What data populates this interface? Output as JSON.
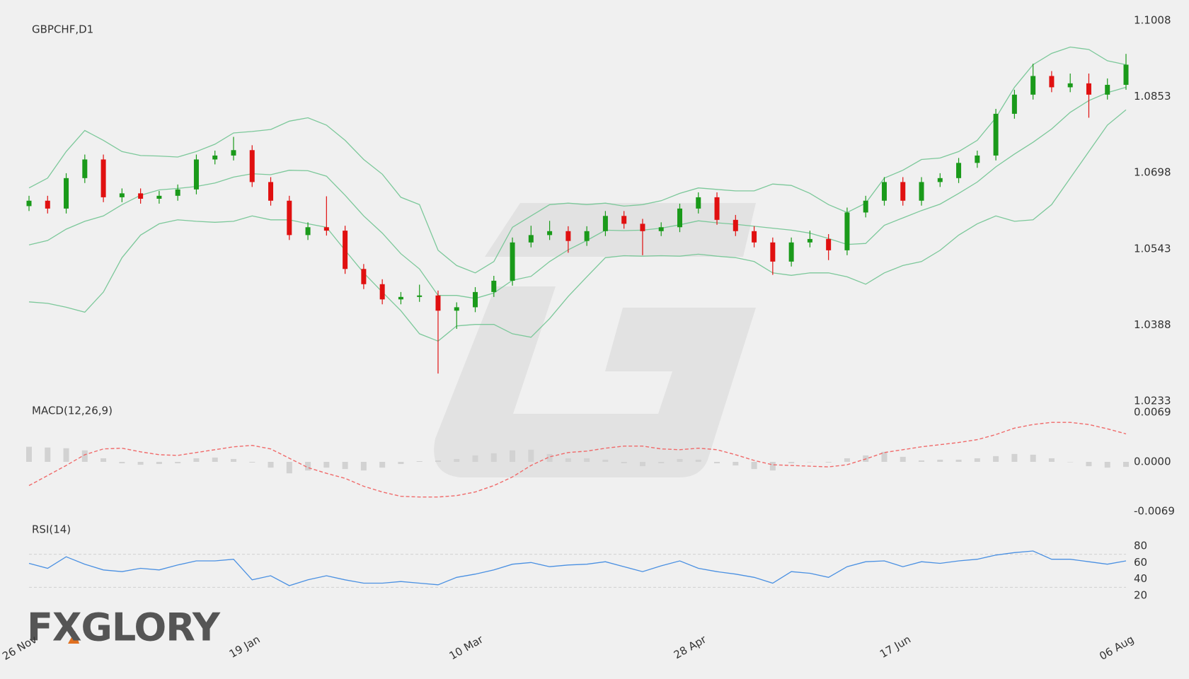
{
  "logo": "FXGLORY",
  "chart_data": [
    {
      "type": "candlestick",
      "title": "GBPCHF,D1",
      "categories": [
        "26 Nov",
        null,
        null,
        null,
        null,
        null,
        null,
        null,
        null,
        null,
        null,
        null,
        "19 Jan",
        null,
        null,
        null,
        null,
        null,
        null,
        null,
        null,
        null,
        null,
        null,
        "10 Mar",
        null,
        null,
        null,
        null,
        null,
        null,
        null,
        null,
        null,
        null,
        null,
        "28 Apr",
        null,
        null,
        null,
        null,
        null,
        null,
        null,
        null,
        null,
        null,
        "17 Jun",
        null,
        null,
        null,
        null,
        null,
        null,
        null,
        null,
        null,
        null,
        null,
        "06 Aug"
      ],
      "open": [
        1.063,
        1.0641,
        1.0625,
        1.0687,
        1.0725,
        1.0648,
        1.0656,
        1.0645,
        1.0651,
        1.0664,
        1.0725,
        1.0733,
        1.0744,
        1.0679,
        1.0641,
        1.0571,
        1.0587,
        1.058,
        1.0502,
        1.0471,
        1.044,
        1.0445,
        1.0448,
        1.0417,
        1.0424,
        1.0455,
        1.0478,
        1.0556,
        1.0571,
        1.0579,
        1.0559,
        1.0579,
        1.061,
        1.0594,
        1.0579,
        1.0587,
        1.0625,
        1.0648,
        1.0602,
        1.0579,
        1.0556,
        1.0517,
        1.0556,
        1.0563,
        1.054,
        1.0617,
        1.0641,
        1.0679,
        1.0641,
        1.0679,
        1.0687,
        1.0718,
        1.0733,
        1.0818,
        1.0857,
        1.0895,
        1.0872,
        1.088,
        1.0857,
        1.0877
      ],
      "high": [
        1.0651,
        1.0651,
        1.0697,
        1.0735,
        1.0735,
        1.0666,
        1.0666,
        1.0661,
        1.0674,
        1.0735,
        1.0743,
        1.0771,
        1.0754,
        1.0689,
        1.0651,
        1.0597,
        1.065,
        1.059,
        1.0512,
        1.0481,
        1.0455,
        1.047,
        1.0458,
        1.0434,
        1.0465,
        1.0488,
        1.0566,
        1.059,
        1.06,
        1.0589,
        1.0589,
        1.062,
        1.062,
        1.0604,
        1.0597,
        1.0635,
        1.0658,
        1.0658,
        1.0612,
        1.0589,
        1.0566,
        1.0566,
        1.058,
        1.0573,
        1.0627,
        1.0651,
        1.0689,
        1.0689,
        1.0689,
        1.0697,
        1.0728,
        1.0743,
        1.0828,
        1.0867,
        1.092,
        1.0905,
        1.09,
        1.09,
        1.089,
        1.094
      ],
      "low": [
        1.062,
        1.0615,
        1.0615,
        1.0677,
        1.0638,
        1.0638,
        1.0635,
        1.0635,
        1.0641,
        1.0654,
        1.0715,
        1.0723,
        1.0669,
        1.0631,
        1.0561,
        1.0561,
        1.057,
        1.0492,
        1.0461,
        1.043,
        1.043,
        1.0435,
        1.0289,
        1.038,
        1.0414,
        1.0445,
        1.0468,
        1.0546,
        1.0561,
        1.0535,
        1.0549,
        1.0569,
        1.0584,
        1.053,
        1.0569,
        1.0577,
        1.0615,
        1.0592,
        1.0569,
        1.0546,
        1.049,
        1.0507,
        1.0546,
        1.052,
        1.053,
        1.0607,
        1.0631,
        1.0631,
        1.0631,
        1.0669,
        1.0677,
        1.0708,
        1.0723,
        1.0808,
        1.0847,
        1.0862,
        1.0862,
        1.081,
        1.0847,
        1.0867
      ],
      "close": [
        1.0641,
        1.0625,
        1.0687,
        1.0725,
        1.0648,
        1.0656,
        1.0645,
        1.0651,
        1.0664,
        1.0725,
        1.0733,
        1.0744,
        1.0679,
        1.0641,
        1.0571,
        1.0587,
        1.058,
        1.0502,
        1.0471,
        1.044,
        1.0445,
        1.0448,
        1.0417,
        1.0424,
        1.0455,
        1.0478,
        1.0556,
        1.0571,
        1.0579,
        1.0559,
        1.0579,
        1.061,
        1.0594,
        1.0579,
        1.0587,
        1.0625,
        1.0648,
        1.0602,
        1.0579,
        1.0556,
        1.0517,
        1.0556,
        1.0563,
        1.054,
        1.0617,
        1.0641,
        1.0679,
        1.0641,
        1.0679,
        1.0687,
        1.0718,
        1.0733,
        1.0818,
        1.0857,
        1.0895,
        1.0872,
        1.088,
        1.0857,
        1.0877,
        1.0918
      ],
      "up_color": "#1a9a1a",
      "down_color": "#e01010",
      "series": [
        {
          "type": "line",
          "color": "#7cc89a",
          "values": [
            1.0667,
            1.0687,
            1.0741,
            1.0784,
            1.0764,
            1.0741,
            1.0733,
            1.0732,
            1.073,
            1.0741,
            1.0756,
            1.0779,
            1.0782,
            1.0786,
            1.0803,
            1.081,
            1.0795,
            1.0764,
            1.0725,
            1.0695,
            1.0648,
            1.0633,
            1.054,
            1.0509,
            1.0494,
            1.0517,
            1.0587,
            1.061,
            1.0633,
            1.0636,
            1.0633,
            1.0636,
            1.063,
            1.0633,
            1.0641,
            1.0656,
            1.0667,
            1.0664,
            1.0661,
            1.0661,
            1.0675,
            1.0672,
            1.0656,
            1.0633,
            1.0617,
            1.0636,
            1.0687,
            1.0703,
            1.0725,
            1.0728,
            1.0741,
            1.0764,
            1.081,
            1.0872,
            1.0918,
            1.0941,
            1.0954,
            1.0949,
            1.0926,
            1.0918
          ]
        },
        {
          "type": "line",
          "color": "#7cc89a",
          "values": [
            1.0551,
            1.056,
            1.0583,
            1.0599,
            1.061,
            1.0633,
            1.0652,
            1.0663,
            1.0666,
            1.067,
            1.0677,
            1.0689,
            1.0696,
            1.0694,
            1.0703,
            1.0702,
            1.0691,
            1.0652,
            1.061,
            1.0575,
            1.0533,
            1.0502,
            1.0448,
            1.0448,
            1.0442,
            1.0453,
            1.0479,
            1.0487,
            1.0517,
            1.0541,
            1.056,
            1.0581,
            1.058,
            1.0581,
            1.0585,
            1.0592,
            1.06,
            1.0596,
            1.0593,
            1.0589,
            1.0585,
            1.0581,
            1.0575,
            1.0564,
            1.0552,
            1.0554,
            1.0591,
            1.0606,
            1.0621,
            1.0634,
            1.0656,
            1.0679,
            1.071,
            1.0736,
            1.076,
            1.0787,
            1.0821,
            1.0845,
            1.0861,
            1.0872
          ]
        },
        {
          "type": "line",
          "color": "#7cc89a",
          "values": [
            1.0435,
            1.0432,
            1.0424,
            1.0414,
            1.0455,
            1.0525,
            1.0571,
            1.0594,
            1.0602,
            1.0599,
            1.0597,
            1.0599,
            1.061,
            1.0602,
            1.0602,
            1.0594,
            1.0587,
            1.054,
            1.0494,
            1.0455,
            1.0417,
            1.037,
            1.0355,
            1.0386,
            1.0389,
            1.0389,
            1.037,
            1.0363,
            1.0401,
            1.0446,
            1.0486,
            1.0525,
            1.0529,
            1.0528,
            1.0529,
            1.0528,
            1.0532,
            1.0528,
            1.0525,
            1.0517,
            1.0494,
            1.0489,
            1.0494,
            1.0494,
            1.0486,
            1.0471,
            1.0494,
            1.0509,
            1.0517,
            1.054,
            1.0571,
            1.0594,
            1.061,
            1.0599,
            1.0602,
            1.0633,
            1.0687,
            1.0741,
            1.0795,
            1.0826
          ]
        }
      ],
      "ylim": [
        1.0233,
        1.1008
      ],
      "yticks": [
        1.1008,
        1.0853,
        1.0698,
        1.0543,
        1.0388,
        1.0233
      ]
    },
    {
      "type": "indicator",
      "title": "MACD(12,26,9)",
      "series": [
        {
          "type": "bar",
          "color": "#d2d2d2",
          "values": [
            0.0021,
            0.002,
            0.0019,
            0.0016,
            0.0005,
            -0.0002,
            -0.0004,
            -0.0003,
            -0.0002,
            0.0005,
            0.0006,
            0.0004,
            -0.0001,
            -0.0008,
            -0.0016,
            -0.0012,
            -0.0008,
            -0.001,
            -0.0012,
            -0.0008,
            -0.0003,
            0.0001,
            0.0002,
            0.0004,
            0.0009,
            0.0012,
            0.0016,
            0.0017,
            0.0011,
            0.0005,
            0.0005,
            0.0003,
            -0.0002,
            -0.0006,
            -0.0002,
            0.0004,
            0.0003,
            -0.0002,
            -0.0005,
            -0.001,
            -0.0012,
            -0.0002,
            0.0,
            -0.0001,
            0.0005,
            0.0009,
            0.0014,
            0.0007,
            0.0002,
            0.0003,
            0.0003,
            0.0005,
            0.0008,
            0.0011,
            0.001,
            0.0005,
            0.0,
            -0.0006,
            -0.0008,
            -0.0007
          ]
        },
        {
          "type": "line",
          "color": "#f06a6a",
          "dashed": true,
          "values": [
            -0.0033,
            -0.0019,
            -0.0005,
            0.001,
            0.0018,
            0.0019,
            0.0014,
            0.001,
            0.0009,
            0.0013,
            0.0017,
            0.0021,
            0.0023,
            0.0018,
            0.0005,
            -0.0008,
            -0.0016,
            -0.0023,
            -0.0034,
            -0.0042,
            -0.0048,
            -0.0049,
            -0.0049,
            -0.0047,
            -0.0042,
            -0.0033,
            -0.0021,
            -0.0005,
            0.0007,
            0.0013,
            0.0015,
            0.0019,
            0.0022,
            0.0022,
            0.0018,
            0.0017,
            0.0019,
            0.0017,
            0.001,
            0.0002,
            -0.0004,
            -0.0005,
            -0.0006,
            -0.0007,
            -0.0004,
            0.0004,
            0.0013,
            0.0017,
            0.0021,
            0.0024,
            0.0027,
            0.0031,
            0.0038,
            0.0047,
            0.0052,
            0.0055,
            0.0055,
            0.0052,
            0.0046,
            0.0039
          ]
        }
      ],
      "ylim": [
        -0.0069,
        0.0069
      ],
      "yticks": [
        {
          "value": 0.0069,
          "label": "0.0069"
        },
        {
          "value": 0,
          "label": "0.0000"
        },
        {
          "value": -0.0069,
          "label": "-0.0069"
        }
      ]
    },
    {
      "type": "indicator",
      "title": "RSI(14)",
      "series": [
        {
          "type": "line",
          "color": "#4a90e2",
          "values": [
            59,
            53,
            67,
            58,
            51,
            49,
            53,
            51,
            57,
            62,
            62,
            64,
            39,
            44,
            32,
            39,
            44,
            39,
            35,
            35,
            37,
            35,
            33,
            42,
            46,
            51,
            58,
            60,
            55,
            57,
            58,
            61,
            55,
            49,
            56,
            62,
            53,
            49,
            46,
            42,
            35,
            49,
            47,
            42,
            55,
            61,
            62,
            55,
            61,
            59,
            62,
            64,
            69,
            72,
            74,
            64,
            64,
            61,
            58,
            62
          ]
        }
      ],
      "levels": [
        30,
        70
      ],
      "ylim": [
        20,
        80
      ],
      "yticks": [
        80,
        60,
        40,
        20
      ]
    }
  ]
}
